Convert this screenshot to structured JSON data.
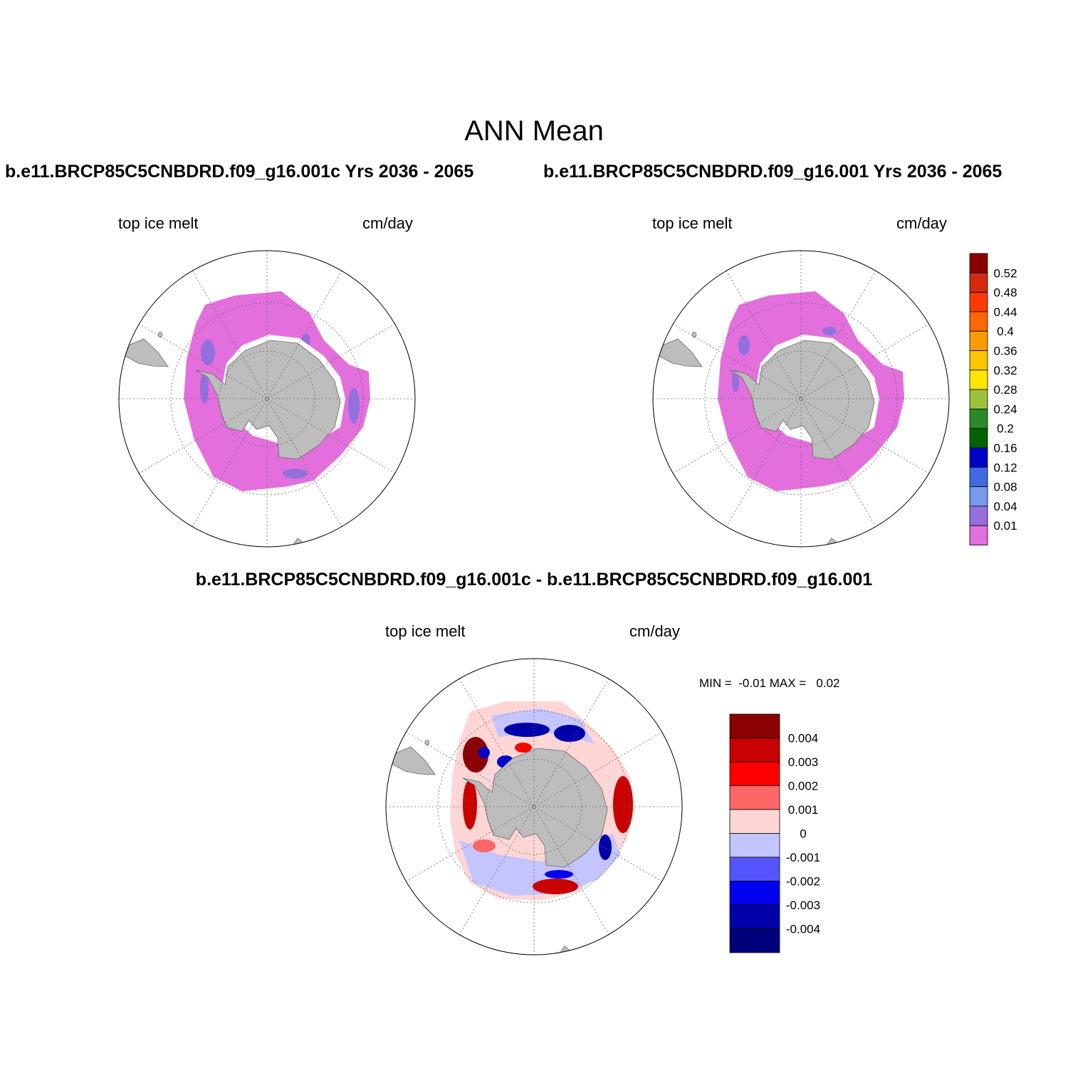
{
  "figure": {
    "title": "ANN Mean",
    "diff_title": "b.e11.BRCP85C5CNBDRD.f09_g16.001c - b.e11.BRCP85C5CNBDRD.f09_g16.001"
  },
  "panels": [
    {
      "title": "b.e11.BRCP85C5CNBDRD.f09_g16.001c  Yrs 2036 - 2065",
      "variable": "top ice melt",
      "units": "cm/day"
    },
    {
      "title": "b.e11.BRCP85C5CNBDRD.f09_g16.001  Yrs 2036 - 2065",
      "variable": "top ice melt",
      "units": "cm/day"
    },
    {
      "variable": "top ice melt",
      "units": "cm/day",
      "min_max": "MIN =  -0.01 MAX =   0.02"
    }
  ],
  "colorbars": {
    "absolute": {
      "labels": [
        "0.52",
        "0.48",
        "0.44",
        "0.4",
        "0.36",
        "0.32",
        "0.28",
        "0.24",
        "0.2",
        "0.16",
        "0.12",
        "0.08",
        "0.04",
        "0.01"
      ],
      "colors": [
        "#8b0000",
        "#d42a10",
        "#ff3a00",
        "#ff6600",
        "#ff9900",
        "#ffc400",
        "#ffe500",
        "#9cc23a",
        "#2a8a2a",
        "#006400",
        "#0000c8",
        "#4169e1",
        "#7799ee",
        "#9370db",
        "#e36fdc"
      ]
    },
    "difference": {
      "labels": [
        "0.004",
        "0.003",
        "0.002",
        "0.001",
        "0",
        "-0.001",
        "-0.002",
        "-0.003",
        "-0.004"
      ],
      "colors": [
        "#8b0000",
        "#c80000",
        "#ff0000",
        "#ff6666",
        "#ffd6d6",
        "#c4c4ff",
        "#5555ff",
        "#0000ee",
        "#0000aa",
        "#00007a"
      ]
    }
  },
  "map_colors": {
    "land": "#bdbdbd",
    "field_low": "#e36fdc",
    "field_accent": "#9370db"
  }
}
